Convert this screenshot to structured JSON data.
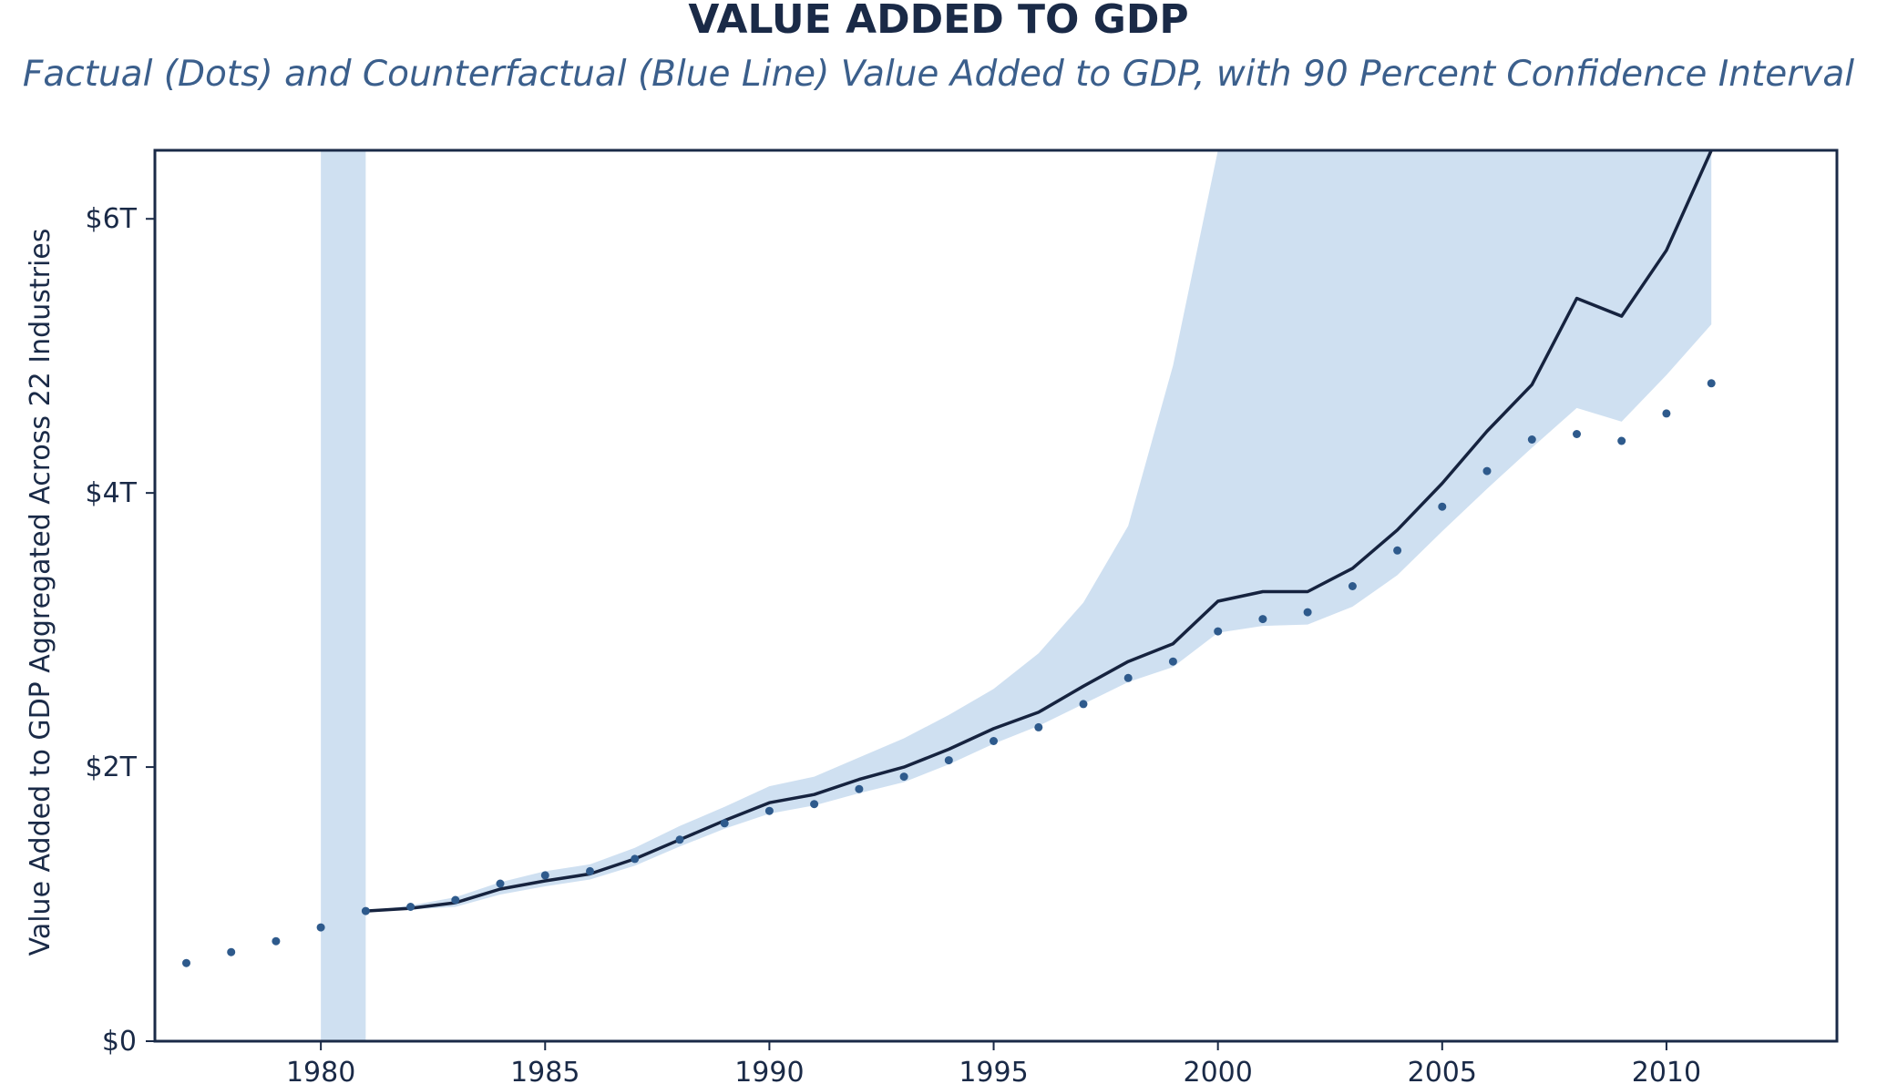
{
  "chart_data": {
    "type": "line",
    "title": "VALUE ADDED TO GDP",
    "subtitle": "Factual (Dots) and Counterfactual (Blue Line) Value Added to GDP, with 90 Percent Confidence Interval",
    "ylabel": "Value Added to GDP Aggregated Across 22 Industries",
    "xlabel": "",
    "xlim": [
      1976.3,
      2013.8
    ],
    "ylim": [
      0,
      6.5
    ],
    "x_ticks": [
      1980,
      1985,
      1990,
      1995,
      2000,
      2005,
      2010
    ],
    "y_ticks": [
      {
        "value": 0,
        "label": "$0"
      },
      {
        "value": 2,
        "label": "$2T"
      },
      {
        "value": 4,
        "label": "$4T"
      },
      {
        "value": 6,
        "label": "$6T"
      }
    ],
    "grid": false,
    "colors": {
      "band": "#cfe0f1",
      "line": "#16233f",
      "dots": "#2e5a8c",
      "frame": "#1a2a47"
    },
    "shaded_span": [
      1980,
      1981
    ],
    "series": [
      {
        "name": "Factual",
        "style": "dots",
        "x": [
          1977,
          1978,
          1979,
          1980,
          1981,
          1982,
          1983,
          1984,
          1985,
          1986,
          1987,
          1988,
          1989,
          1990,
          1991,
          1992,
          1993,
          1994,
          1995,
          1996,
          1997,
          1998,
          1999,
          2000,
          2001,
          2002,
          2003,
          2004,
          2005,
          2006,
          2007,
          2008,
          2009,
          2010,
          2011
        ],
        "values": [
          0.57,
          0.65,
          0.73,
          0.83,
          0.95,
          0.98,
          1.03,
          1.15,
          1.21,
          1.24,
          1.33,
          1.47,
          1.59,
          1.68,
          1.73,
          1.84,
          1.93,
          2.05,
          2.19,
          2.29,
          2.46,
          2.65,
          2.77,
          2.99,
          3.08,
          3.13,
          3.32,
          3.58,
          3.9,
          4.16,
          4.39,
          4.43,
          4.38,
          4.58,
          4.8
        ]
      },
      {
        "name": "Counterfactual",
        "style": "line",
        "x": [
          1981,
          1982,
          1983,
          1984,
          1985,
          1986,
          1987,
          1988,
          1989,
          1990,
          1991,
          1992,
          1993,
          1994,
          1995,
          1996,
          1997,
          1998,
          1999,
          2000,
          2001,
          2002,
          2003,
          2004,
          2005,
          2006,
          2007,
          2008,
          2009,
          2010,
          2011
        ],
        "values": [
          0.95,
          0.97,
          1.01,
          1.11,
          1.17,
          1.22,
          1.33,
          1.47,
          1.61,
          1.74,
          1.8,
          1.91,
          2.0,
          2.13,
          2.28,
          2.4,
          2.59,
          2.77,
          2.9,
          3.21,
          3.28,
          3.28,
          3.45,
          3.73,
          4.07,
          4.45,
          4.79,
          5.42,
          5.29,
          5.77,
          6.5
        ],
        "lower": [
          0.95,
          0.96,
          0.98,
          1.07,
          1.13,
          1.18,
          1.28,
          1.42,
          1.55,
          1.66,
          1.72,
          1.81,
          1.89,
          2.02,
          2.17,
          2.3,
          2.46,
          2.62,
          2.73,
          2.98,
          3.03,
          3.04,
          3.17,
          3.4,
          3.72,
          4.03,
          4.33,
          4.62,
          4.52,
          4.86,
          5.23
        ],
        "upper": [
          0.95,
          0.99,
          1.05,
          1.16,
          1.24,
          1.29,
          1.41,
          1.57,
          1.71,
          1.86,
          1.93,
          2.07,
          2.21,
          2.38,
          2.57,
          2.83,
          3.2,
          3.76,
          4.93,
          6.5,
          6.5,
          6.5,
          6.5,
          6.5,
          6.5,
          6.5,
          6.5,
          6.5,
          6.5,
          6.5,
          6.5
        ]
      }
    ]
  }
}
